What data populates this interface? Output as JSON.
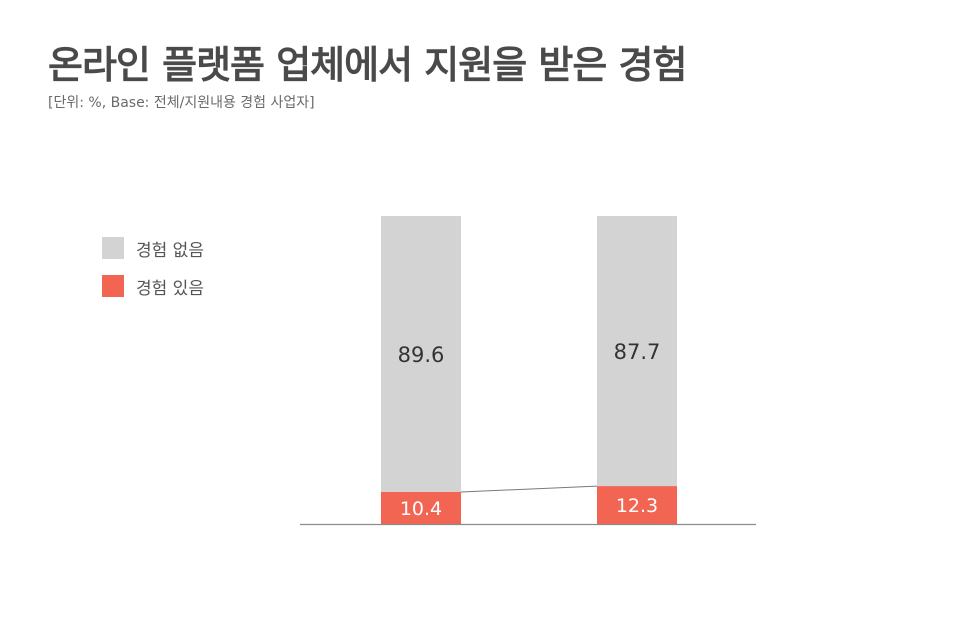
{
  "title": "온라인 플랫폼 업체에서 지원을 받은 경험",
  "subtitle": "[단위: %, Base: 전체/지원내용 경험 사업자]",
  "colors": {
    "no_experience": "#d3d3d3",
    "experience": "#f26552",
    "axis": "#8c8c8c",
    "text": "#333333"
  },
  "chart_data": {
    "type": "bar",
    "stacked": true,
    "categories": [
      "",
      ""
    ],
    "series": [
      {
        "name": "경험 있음",
        "values": [
          10.4,
          12.3
        ]
      },
      {
        "name": "경험 없음",
        "values": [
          89.6,
          87.7
        ]
      }
    ],
    "ylim": [
      0,
      100
    ],
    "legend": "left",
    "grid": false
  }
}
